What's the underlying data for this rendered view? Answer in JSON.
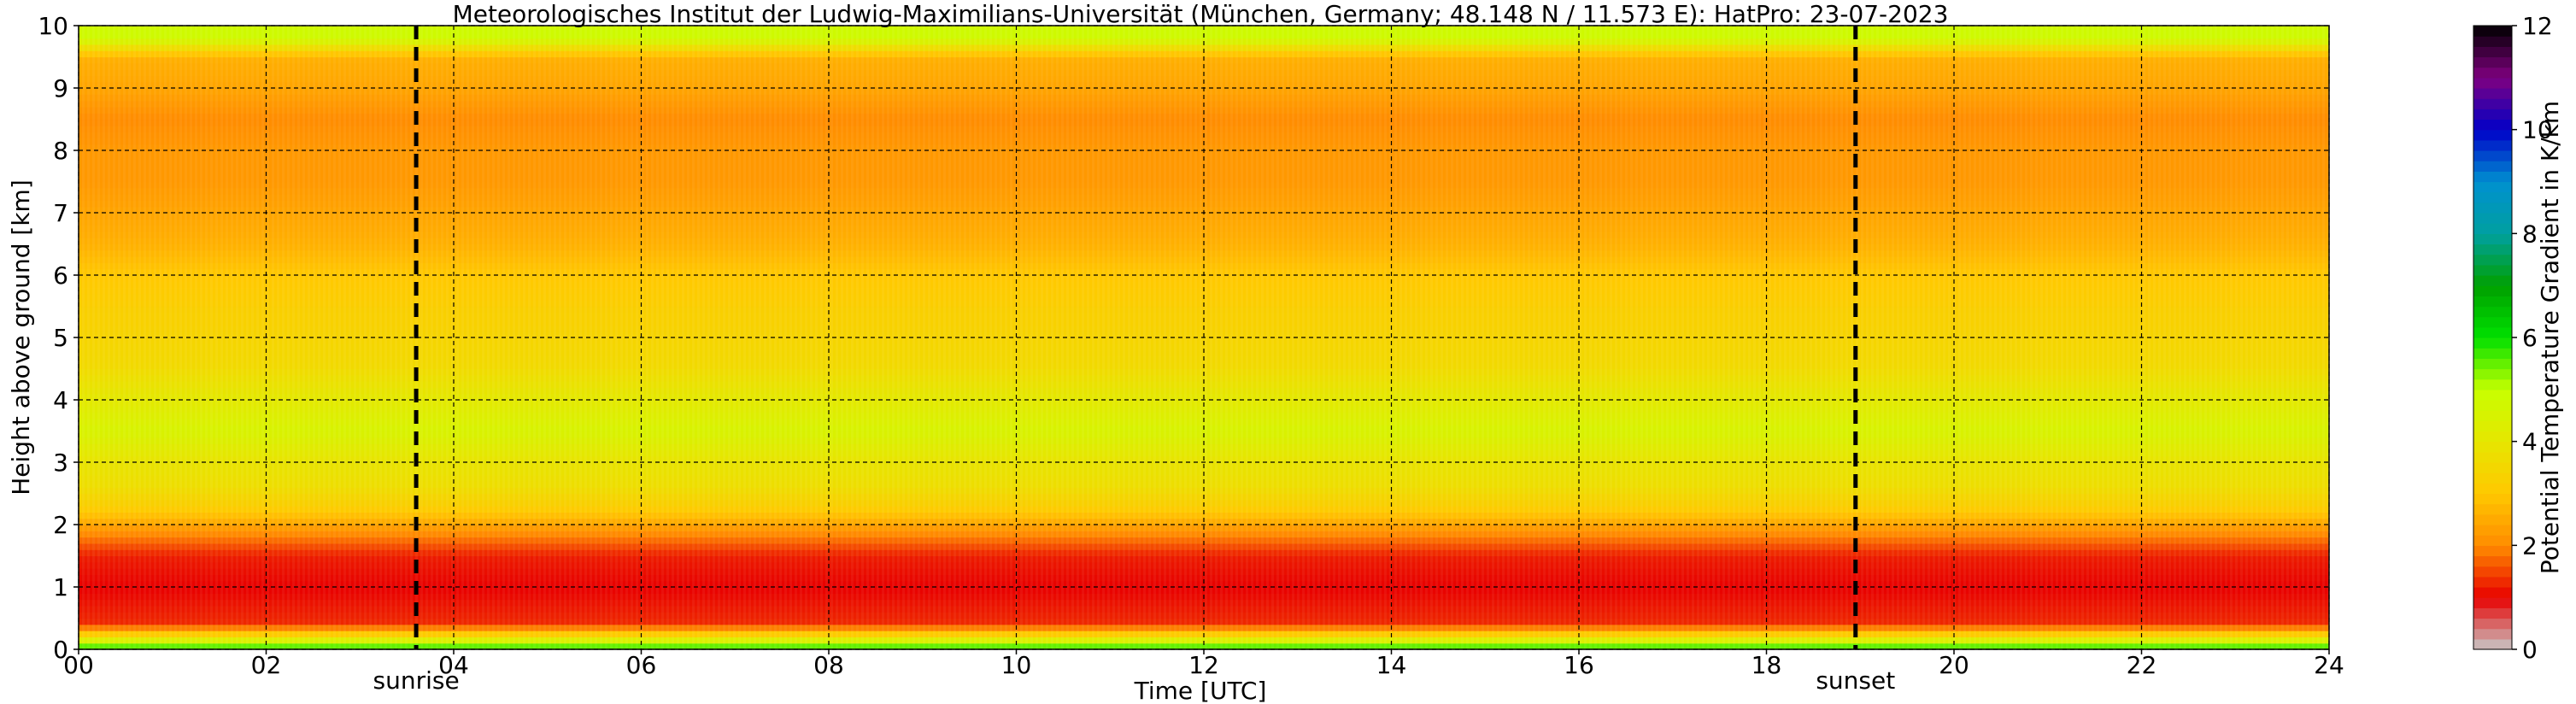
{
  "chart_data": {
    "type": "heatmap",
    "title": "Meteorologisches Institut der Ludwig-Maximilians-Universität (München, Germany; 48.148 N / 11.573 E):    HatPro: 23-07-2023",
    "xlabel": "Time [UTC]",
    "ylabel": "Height above ground [km]",
    "xlim": [
      0,
      24
    ],
    "ylim": [
      0,
      10
    ],
    "x_ticks": [
      "00",
      "02",
      "04",
      "06",
      "08",
      "10",
      "12",
      "14",
      "16",
      "18",
      "20",
      "22",
      "24"
    ],
    "y_ticks": [
      "0",
      "1",
      "2",
      "3",
      "4",
      "5",
      "6",
      "7",
      "8",
      "9",
      "10"
    ],
    "grid": true,
    "colorbar": {
      "label": "Potential Temperature Gradient in K/km",
      "range": [
        0,
        12
      ],
      "ticks": [
        "0",
        "2",
        "4",
        "6",
        "8",
        "10",
        "12"
      ],
      "colors": [
        "#c8c8c8",
        "#e80000",
        "#ff8c00",
        "#ffc800",
        "#e6e600",
        "#c8ff00",
        "#00e000",
        "#00a000",
        "#00a0a0",
        "#0090d0",
        "#0000c8",
        "#800080",
        "#000000"
      ]
    },
    "markers": [
      {
        "label": "sunrise",
        "x": 3.6
      },
      {
        "label": "sunset",
        "x": 18.95
      }
    ],
    "height_profile": [
      {
        "z": 0.05,
        "value": 5.5
      },
      {
        "z": 0.4,
        "value": 1.3
      },
      {
        "z": 1.0,
        "value": 1.0
      },
      {
        "z": 1.5,
        "value": 1.2
      },
      {
        "z": 1.9,
        "value": 2.1
      },
      {
        "z": 2.2,
        "value": 3.0
      },
      {
        "z": 2.6,
        "value": 3.7
      },
      {
        "z": 3.0,
        "value": 3.9
      },
      {
        "z": 3.5,
        "value": 4.5
      },
      {
        "z": 4.0,
        "value": 4.1
      },
      {
        "z": 4.5,
        "value": 3.6
      },
      {
        "z": 5.0,
        "value": 3.4
      },
      {
        "z": 5.5,
        "value": 3.2
      },
      {
        "z": 6.0,
        "value": 3.0
      },
      {
        "z": 6.5,
        "value": 2.6
      },
      {
        "z": 7.0,
        "value": 2.4
      },
      {
        "z": 7.5,
        "value": 2.2
      },
      {
        "z": 8.0,
        "value": 2.2
      },
      {
        "z": 8.5,
        "value": 2.0
      },
      {
        "z": 9.0,
        "value": 2.4
      },
      {
        "z": 9.5,
        "value": 2.6
      },
      {
        "z": 9.8,
        "value": 4.8
      }
    ]
  }
}
